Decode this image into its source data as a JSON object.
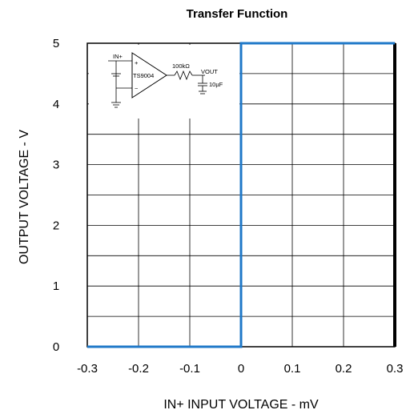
{
  "chart_data": {
    "type": "line",
    "title": "Transfer Function",
    "xlabel": "IN+ INPUT VOLTAGE - mV",
    "ylabel": "OUTPUT VOLTAGE - V",
    "xlim": [
      -0.3,
      0.3
    ],
    "ylim": [
      0,
      5
    ],
    "x_tick_labels": [
      "-0.3",
      "-0.2",
      "-0.1",
      "0",
      "0.1",
      "0.2",
      "0.3"
    ],
    "y_tick_labels": [
      "0",
      "1",
      "2",
      "3",
      "4",
      "5"
    ],
    "grid": true,
    "series": [
      {
        "x": [
          -0.3,
          0,
          0,
          0.3
        ],
        "y": [
          0,
          0,
          5,
          5
        ],
        "color": "#1f78c8"
      }
    ],
    "inset_schematic": {
      "labels": [
        "IN+",
        "TS9004",
        "100kΩ",
        "VOUT",
        "10µF",
        "+",
        "−"
      ]
    }
  }
}
